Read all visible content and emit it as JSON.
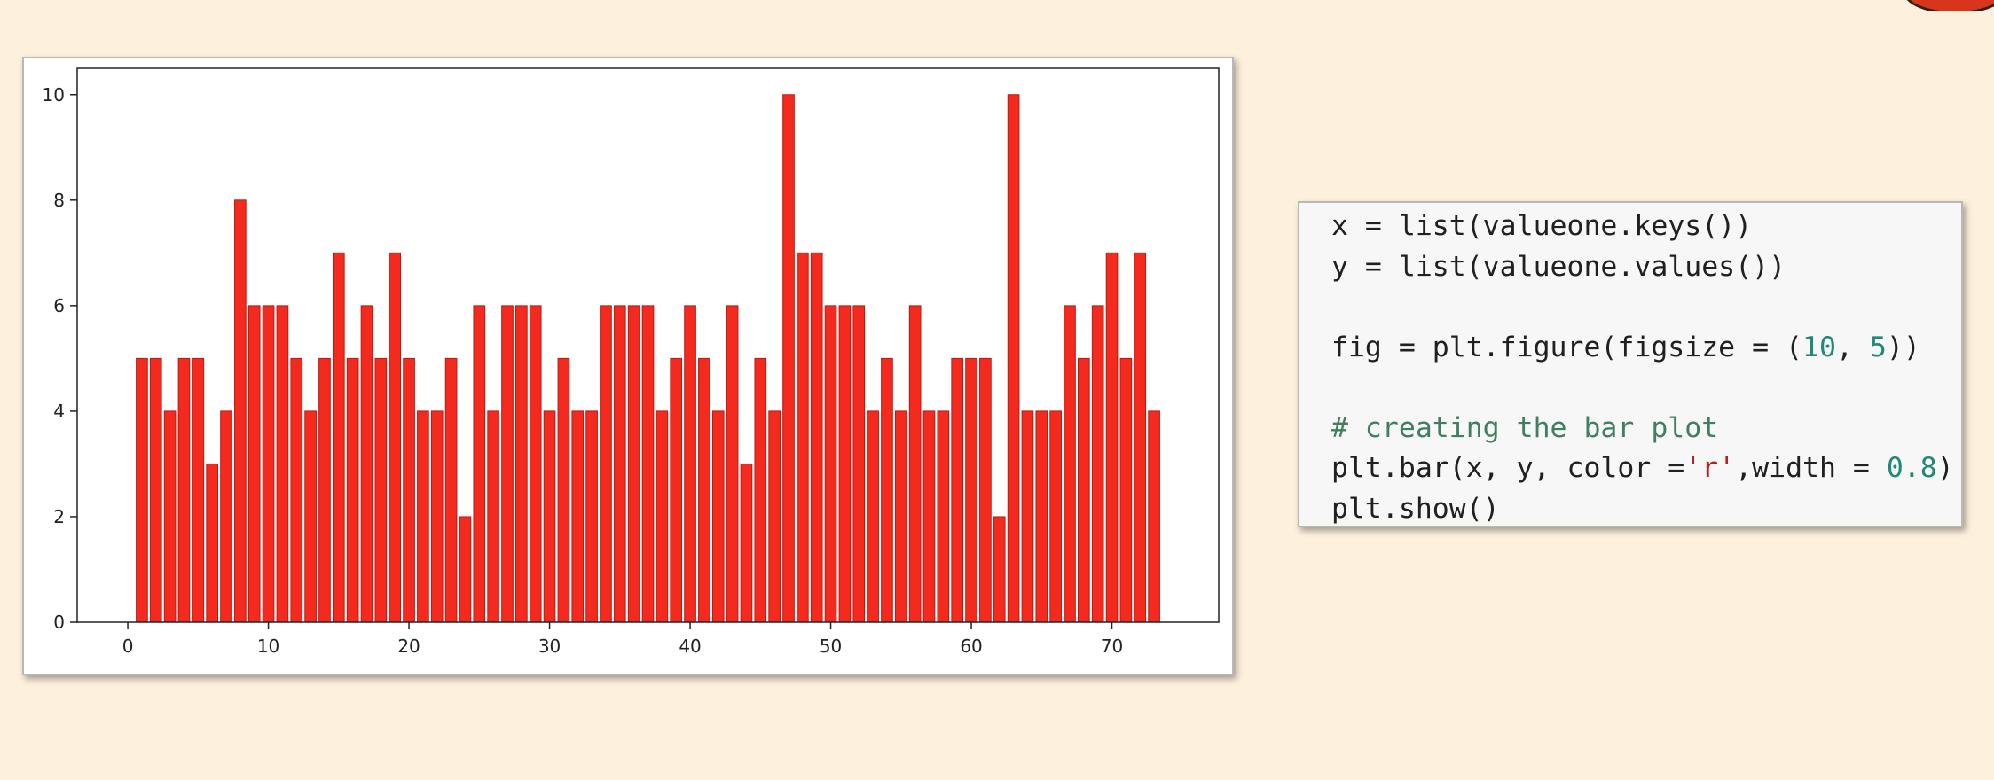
{
  "chart_data": {
    "type": "bar",
    "x": [
      1,
      2,
      3,
      4,
      5,
      6,
      7,
      8,
      9,
      10,
      11,
      12,
      13,
      14,
      15,
      16,
      17,
      18,
      19,
      20,
      21,
      22,
      23,
      24,
      25,
      26,
      27,
      28,
      29,
      30,
      31,
      32,
      33,
      34,
      35,
      36,
      37,
      38,
      39,
      40,
      41,
      42,
      43,
      44,
      45,
      46,
      47,
      48,
      49,
      50,
      51,
      52,
      53,
      54,
      55,
      56,
      57,
      58,
      59,
      60,
      61,
      62,
      63,
      64,
      65,
      66,
      67,
      68,
      69,
      70,
      71,
      72,
      73
    ],
    "values": [
      5,
      5,
      4,
      5,
      5,
      3,
      4,
      8,
      6,
      6,
      6,
      5,
      4,
      5,
      7,
      5,
      6,
      5,
      7,
      5,
      4,
      4,
      5,
      2,
      6,
      4,
      6,
      6,
      6,
      4,
      5,
      4,
      4,
      6,
      6,
      6,
      6,
      4,
      5,
      6,
      5,
      4,
      6,
      3,
      5,
      4,
      10,
      7,
      7,
      6,
      6,
      6,
      4,
      5,
      4,
      6,
      4,
      4,
      5,
      5,
      5,
      2,
      10,
      4,
      4,
      4,
      6,
      5,
      6,
      7,
      5,
      7,
      4
    ],
    "bar_width": 0.8,
    "bar_color": "#f52a1f",
    "bar_edge_color": "#b81c14",
    "xlim": [
      -3.6,
      77.6
    ],
    "ylim": [
      0,
      10.5
    ],
    "xticks": [
      0,
      10,
      20,
      30,
      40,
      50,
      60,
      70
    ],
    "yticks": [
      0,
      2,
      4,
      6,
      8,
      10
    ],
    "title": "",
    "xlabel": "",
    "ylabel": "",
    "grid": false
  },
  "code": {
    "lines": [
      [
        {
          "t": "x = list(valueone.keys())",
          "c": ""
        }
      ],
      [
        {
          "t": "y = list(valueone.values())",
          "c": ""
        }
      ],
      [
        {
          "t": "",
          "c": ""
        }
      ],
      [
        {
          "t": "fig = plt.figure(figsize = (",
          "c": ""
        },
        {
          "t": "10",
          "c": "num"
        },
        {
          "t": ", ",
          "c": ""
        },
        {
          "t": "5",
          "c": "num"
        },
        {
          "t": "))",
          "c": ""
        }
      ],
      [
        {
          "t": "",
          "c": ""
        }
      ],
      [
        {
          "t": "# creating the bar plot",
          "c": "comment"
        }
      ],
      [
        {
          "t": "plt.bar(x, y, color =",
          "c": ""
        },
        {
          "t": "'r'",
          "c": "str"
        },
        {
          "t": ",width = ",
          "c": ""
        },
        {
          "t": "0.8",
          "c": "num"
        },
        {
          "t": ")",
          "c": ""
        }
      ],
      [
        {
          "t": "plt.show()",
          "c": ""
        }
      ]
    ]
  }
}
